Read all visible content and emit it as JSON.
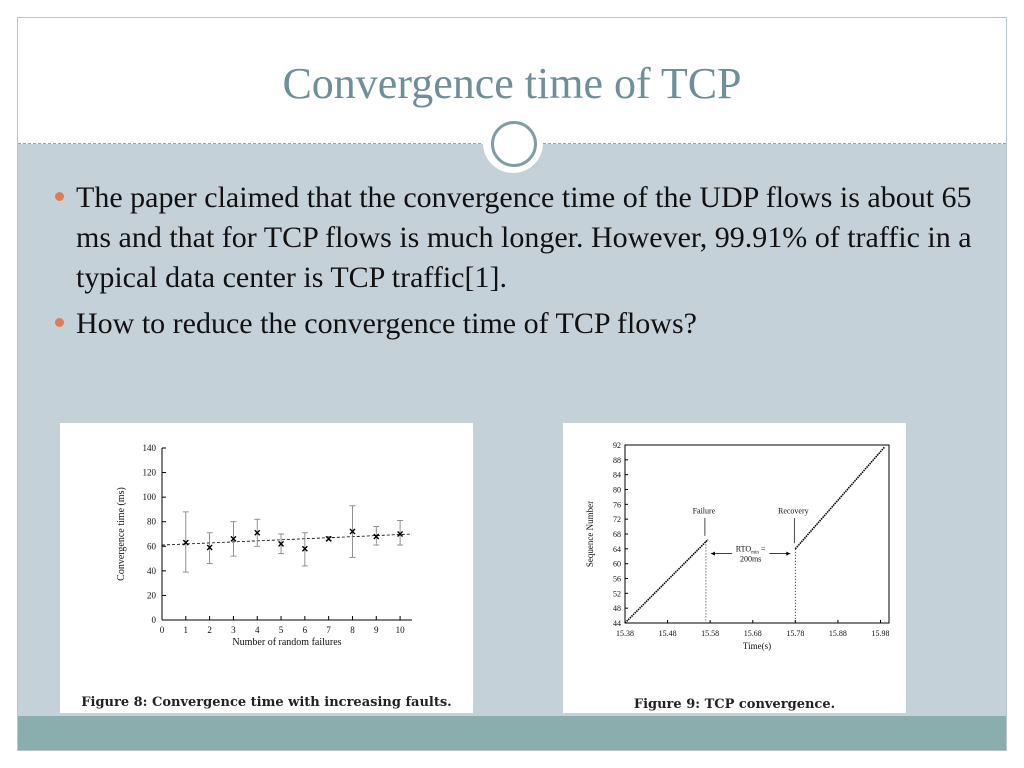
{
  "slide": {
    "title": "Convergence time of TCP",
    "bullets": [
      "The paper claimed that the convergence time of the UDP flows is about 65 ms and that for TCP flows is much longer. However, 99.91% of traffic in a typical data center is TCP traffic[1].",
      "How to reduce the convergence time of TCP flows?"
    ],
    "colors": {
      "title": "#6e8f98",
      "bullet": "#e07b59",
      "footer": "#8aadad",
      "content_bg": "#c5d1d8"
    }
  },
  "figures": {
    "fig8_caption": "Figure 8:  Convergence time with increasing faults.",
    "fig9_caption": "Figure 9:  TCP convergence.",
    "fig9_failure": "Failure",
    "fig9_recovery": "Recovery",
    "fig9_rto_main": "RTO",
    "fig9_rto_sub": "min",
    "fig9_rto_tail": " =",
    "fig9_rto_value": "200ms"
  },
  "chart_data": [
    {
      "type": "scatter",
      "xlabel": "Number of random failures",
      "ylabel": "Convergence time (ms)",
      "xlim": [
        0,
        10.5
      ],
      "ylim": [
        0,
        140
      ],
      "xticks": [
        0,
        1,
        2,
        3,
        4,
        5,
        6,
        7,
        8,
        9,
        10
      ],
      "yticks": [
        0,
        20,
        40,
        60,
        80,
        100,
        120,
        140
      ],
      "x": [
        1,
        2,
        3,
        4,
        5,
        6,
        7,
        8,
        9,
        10
      ],
      "y": [
        63,
        59,
        66,
        71,
        62,
        58,
        66,
        72,
        68,
        70
      ],
      "err_low": [
        39,
        46,
        52,
        60,
        54,
        44,
        65,
        51,
        61,
        61
      ],
      "err_high": [
        88,
        71,
        80,
        82,
        70,
        71,
        68,
        93,
        76,
        81
      ],
      "trend": [
        [
          0,
          61
        ],
        [
          10.5,
          70
        ]
      ],
      "grid": false
    },
    {
      "type": "line",
      "xlabel": "Time(s)",
      "ylabel": "Sequence Number",
      "xlim": [
        15.38,
        16.0
      ],
      "ylim": [
        44,
        92
      ],
      "xticks": [
        15.38,
        15.48,
        15.58,
        15.68,
        15.78,
        15.88,
        15.98
      ],
      "yticks": [
        44,
        48,
        52,
        56,
        60,
        64,
        68,
        72,
        76,
        80,
        84,
        88,
        92
      ],
      "segments": [
        {
          "x": [
            15.38,
            15.575
          ],
          "y": [
            44,
            66.5
          ]
        },
        {
          "x": [
            15.78,
            15.99
          ],
          "y": [
            64,
            91.5
          ]
        }
      ],
      "failure_x": 15.57,
      "recovery_x": 15.78,
      "grid": false
    }
  ]
}
